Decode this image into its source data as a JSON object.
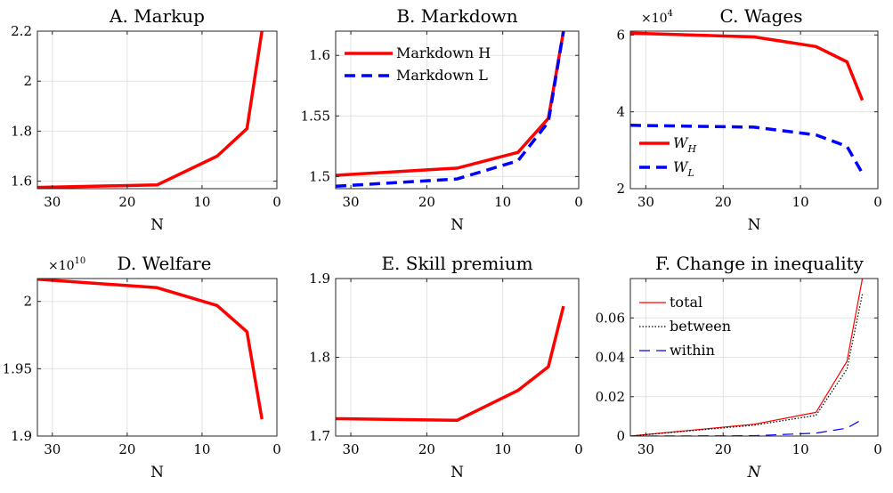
{
  "chart_data": [
    {
      "id": "A",
      "type": "line",
      "title": "A. Markup",
      "xlabel": "N",
      "x_reversed": true,
      "xlim": [
        0,
        32
      ],
      "xticks": [
        30,
        20,
        10,
        0
      ],
      "ylim": [
        1.57,
        2.2
      ],
      "yticks": [
        1.6,
        1.8,
        2,
        2.2
      ],
      "ytick_labels": [
        "1.6",
        "1.8",
        "2",
        "2.2"
      ],
      "series": [
        {
          "style": "solid",
          "color": "#ff0000",
          "width": 3.5,
          "x": [
            32,
            16,
            8,
            4,
            2
          ],
          "y": [
            1.575,
            1.585,
            1.7,
            1.81,
            2.2
          ]
        }
      ]
    },
    {
      "id": "B",
      "type": "line",
      "title": "B. Markdown",
      "xlabel": "N",
      "x_reversed": true,
      "xlim": [
        0,
        32
      ],
      "xticks": [
        30,
        20,
        10,
        0
      ],
      "ylim": [
        1.49,
        1.62
      ],
      "yticks": [
        1.5,
        1.55,
        1.6
      ],
      "ytick_labels": [
        "1.5",
        "1.55",
        "1.6"
      ],
      "legend": "top-left",
      "series": [
        {
          "name": "Markdown H",
          "style": "solid",
          "color": "#ff0000",
          "width": 3.5,
          "x": [
            32,
            16,
            8,
            4,
            2
          ],
          "y": [
            1.501,
            1.507,
            1.52,
            1.548,
            1.62
          ]
        },
        {
          "name": "Markdown L",
          "style": "dashed",
          "color": "#0000ff",
          "width": 3.5,
          "x": [
            32,
            16,
            8,
            4,
            2
          ],
          "y": [
            1.492,
            1.498,
            1.513,
            1.545,
            1.62
          ]
        }
      ]
    },
    {
      "id": "C",
      "type": "line",
      "title": "C. Wages",
      "xlabel": "N",
      "x_reversed": true,
      "xlim": [
        0,
        32
      ],
      "xticks": [
        30,
        20,
        10,
        0
      ],
      "ylim": [
        20000,
        61000
      ],
      "yticks": [
        20000,
        40000,
        60000
      ],
      "ytick_labels": [
        "2",
        "4",
        "6"
      ],
      "y_exponent": "×10",
      "y_exponent_power": "4",
      "legend": "bottom-left",
      "series": [
        {
          "name": "W",
          "sub": "H",
          "style": "solid",
          "color": "#ff0000",
          "width": 3.5,
          "x": [
            32,
            16,
            8,
            4,
            2
          ],
          "y": [
            60500,
            59500,
            57000,
            53000,
            43000
          ]
        },
        {
          "name": "W",
          "sub": "L",
          "style": "dashed",
          "color": "#0000ff",
          "width": 3.5,
          "x": [
            32,
            16,
            8,
            4,
            2
          ],
          "y": [
            36500,
            36000,
            34000,
            31000,
            24000
          ]
        }
      ]
    },
    {
      "id": "D",
      "type": "line",
      "title": "D. Welfare",
      "xlabel": "N",
      "x_reversed": true,
      "xlim": [
        0,
        32
      ],
      "xticks": [
        30,
        20,
        10,
        0
      ],
      "ylim": [
        19000000000,
        20170000000
      ],
      "yticks": [
        19000000000,
        19500000000,
        20000000000
      ],
      "ytick_labels": [
        "1.9",
        "1.95",
        "2"
      ],
      "y_exponent": "×10",
      "y_exponent_power": "10",
      "series": [
        {
          "style": "solid",
          "color": "#ff0000",
          "width": 3.5,
          "x": [
            32,
            16,
            8,
            4,
            2
          ],
          "y": [
            20165000000,
            20102000000,
            19970000000,
            19775000000,
            19125000000
          ]
        }
      ]
    },
    {
      "id": "E",
      "type": "line",
      "title": "E. Skill premium",
      "xlabel": "N",
      "x_reversed": true,
      "xlim": [
        0,
        32
      ],
      "xticks": [
        30,
        20,
        10,
        0
      ],
      "ylim": [
        1.7,
        1.9
      ],
      "yticks": [
        1.7,
        1.8,
        1.9
      ],
      "ytick_labels": [
        "1.7",
        "1.8",
        "1.9"
      ],
      "series": [
        {
          "style": "solid",
          "color": "#ff0000",
          "width": 3.5,
          "x": [
            32,
            16,
            8,
            4,
            2
          ],
          "y": [
            1.722,
            1.72,
            1.758,
            1.788,
            1.865
          ]
        }
      ]
    },
    {
      "id": "F",
      "type": "line",
      "title": "F. Change in inequality",
      "xlabel": "N",
      "xlabel_italic": true,
      "x_reversed": true,
      "xlim": [
        0,
        32
      ],
      "xticks": [
        30,
        20,
        10,
        0
      ],
      "ylim": [
        0,
        0.08
      ],
      "yticks": [
        0,
        0.02,
        0.04,
        0.06
      ],
      "ytick_labels": [
        "0",
        "0.02",
        "0.04",
        "0.06"
      ],
      "legend": "top-left",
      "series": [
        {
          "name": "total",
          "style": "solid",
          "color": "#ff0000",
          "width": 1.2,
          "x": [
            32,
            16,
            8,
            4,
            2
          ],
          "y": [
            0,
            0.006,
            0.012,
            0.038,
            0.08
          ]
        },
        {
          "name": "between",
          "style": "dotted",
          "color": "#000000",
          "width": 1.2,
          "x": [
            32,
            16,
            8,
            4,
            2
          ],
          "y": [
            0,
            0.0055,
            0.0105,
            0.034,
            0.072
          ]
        },
        {
          "name": "within",
          "style": "dashed",
          "color": "#0000ff",
          "width": 1.2,
          "x": [
            32,
            16,
            8,
            4,
            2
          ],
          "y": [
            0,
            0.0002,
            0.0015,
            0.004,
            0.0085
          ]
        }
      ]
    }
  ]
}
